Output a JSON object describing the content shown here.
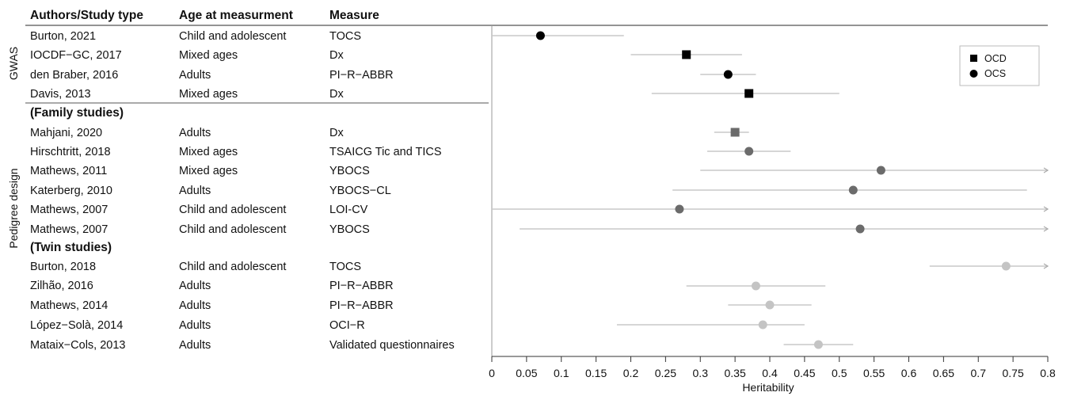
{
  "table": {
    "headers": [
      "Authors/Study type",
      "Age at measurment",
      "Measure"
    ],
    "groups": [
      "GWAS",
      "Pedigree design"
    ],
    "sections": [
      "(Family studies)",
      "(Twin studies)"
    ],
    "rows": [
      {
        "author": "Burton, 2021",
        "age": "Child and adolescent",
        "measure": "TOCS"
      },
      {
        "author": "IOCDF−GC, 2017",
        "age": "Mixed ages",
        "measure": "Dx"
      },
      {
        "author": "den Braber, 2016",
        "age": "Adults",
        "measure": "PI−R−ABBR"
      },
      {
        "author": "Davis, 2013",
        "age": "Mixed ages",
        "measure": "Dx"
      },
      {
        "author": "Mahjani, 2020",
        "age": "Adults",
        "measure": "Dx"
      },
      {
        "author": "Hirschtritt, 2018",
        "age": "Mixed ages",
        "measure": "TSAICG Tic and TICS"
      },
      {
        "author": "Mathews, 2011",
        "age": "Mixed ages",
        "measure": "YBOCS"
      },
      {
        "author": "Katerberg, 2010",
        "age": "Adults",
        "measure": "YBOCS−CL"
      },
      {
        "author": "Mathews, 2007",
        "age": "Child and adolescent",
        "measure": "LOI-CV"
      },
      {
        "author": "Mathews, 2007",
        "age": "Child and adolescent",
        "measure": "YBOCS"
      },
      {
        "author": "Burton, 2018",
        "age": "Child and adolescent",
        "measure": "TOCS"
      },
      {
        "author": "Zilhão, 2016",
        "age": "Adults",
        "measure": "PI−R−ABBR"
      },
      {
        "author": "Mathews, 2014",
        "age": "Adults",
        "measure": "PI−R−ABBR"
      },
      {
        "author": "López−Solà, 2014",
        "age": "Adults",
        "measure": "OCI−R"
      },
      {
        "author": "Mataix−Cols, 2013",
        "age": "Adults",
        "measure": "Validated questionnaires"
      }
    ]
  },
  "chart_data": {
    "type": "scatter",
    "xlabel": "Heritability",
    "xlim": [
      0,
      0.8
    ],
    "xticks": [
      "0",
      "0.05",
      "0.1",
      "0.15",
      "0.2",
      "0.25",
      "0.3",
      "0.35",
      "0.4",
      "0.45",
      "0.5",
      "0.55",
      "0.6",
      "0.65",
      "0.7",
      "0.75",
      "0.8"
    ],
    "legend": {
      "position": "top-right",
      "entries": [
        {
          "label": "OCD",
          "marker": "square"
        },
        {
          "label": "OCS",
          "marker": "circle"
        }
      ]
    },
    "colors": {
      "gwas": "#000000",
      "family": "#6b6b6b",
      "twin": "#c4c4c4",
      "ci_line": "#c8c8c8"
    },
    "points": [
      {
        "study": "Burton, 2021",
        "estimate": 0.07,
        "lower": 0.0,
        "upper": 0.19,
        "shape": "circle",
        "group": "gwas"
      },
      {
        "study": "IOCDF-GC, 2017",
        "estimate": 0.28,
        "lower": 0.2,
        "upper": 0.36,
        "shape": "square",
        "group": "gwas"
      },
      {
        "study": "den Braber, 2016",
        "estimate": 0.34,
        "lower": 0.3,
        "upper": 0.38,
        "shape": "circle",
        "group": "gwas"
      },
      {
        "study": "Davis, 2013",
        "estimate": 0.37,
        "lower": 0.23,
        "upper": 0.5,
        "shape": "square",
        "group": "gwas"
      },
      {
        "study": "Mahjani, 2020",
        "estimate": 0.35,
        "lower": 0.32,
        "upper": 0.37,
        "shape": "square",
        "group": "family"
      },
      {
        "study": "Hirschtritt, 2018",
        "estimate": 0.37,
        "lower": 0.31,
        "upper": 0.43,
        "shape": "circle",
        "group": "family"
      },
      {
        "study": "Mathews, 2011",
        "estimate": 0.56,
        "lower": 0.3,
        "upper": 0.8,
        "shape": "circle",
        "group": "family",
        "arrow": true
      },
      {
        "study": "Katerberg, 2010",
        "estimate": 0.52,
        "lower": 0.26,
        "upper": 0.77,
        "shape": "circle",
        "group": "family"
      },
      {
        "study": "Mathews, 2007 (LOI-CV)",
        "estimate": 0.27,
        "lower": 0.0,
        "upper": 0.8,
        "shape": "circle",
        "group": "family",
        "arrow": true
      },
      {
        "study": "Mathews, 2007 (YBOCS)",
        "estimate": 0.53,
        "lower": 0.04,
        "upper": 0.8,
        "shape": "circle",
        "group": "family",
        "arrow": true
      },
      {
        "study": "Burton, 2018",
        "estimate": 0.74,
        "lower": 0.63,
        "upper": 0.8,
        "shape": "circle",
        "group": "twin",
        "arrow": true
      },
      {
        "study": "Zilhao, 2016",
        "estimate": 0.38,
        "lower": 0.28,
        "upper": 0.48,
        "shape": "circle",
        "group": "twin"
      },
      {
        "study": "Mathews, 2014",
        "estimate": 0.4,
        "lower": 0.34,
        "upper": 0.46,
        "shape": "circle",
        "group": "twin"
      },
      {
        "study": "Lopez-Sola, 2014",
        "estimate": 0.39,
        "lower": 0.18,
        "upper": 0.45,
        "shape": "circle",
        "group": "twin"
      },
      {
        "study": "Mataix-Cols, 2013",
        "estimate": 0.47,
        "lower": 0.42,
        "upper": 0.52,
        "shape": "circle",
        "group": "twin"
      }
    ]
  }
}
